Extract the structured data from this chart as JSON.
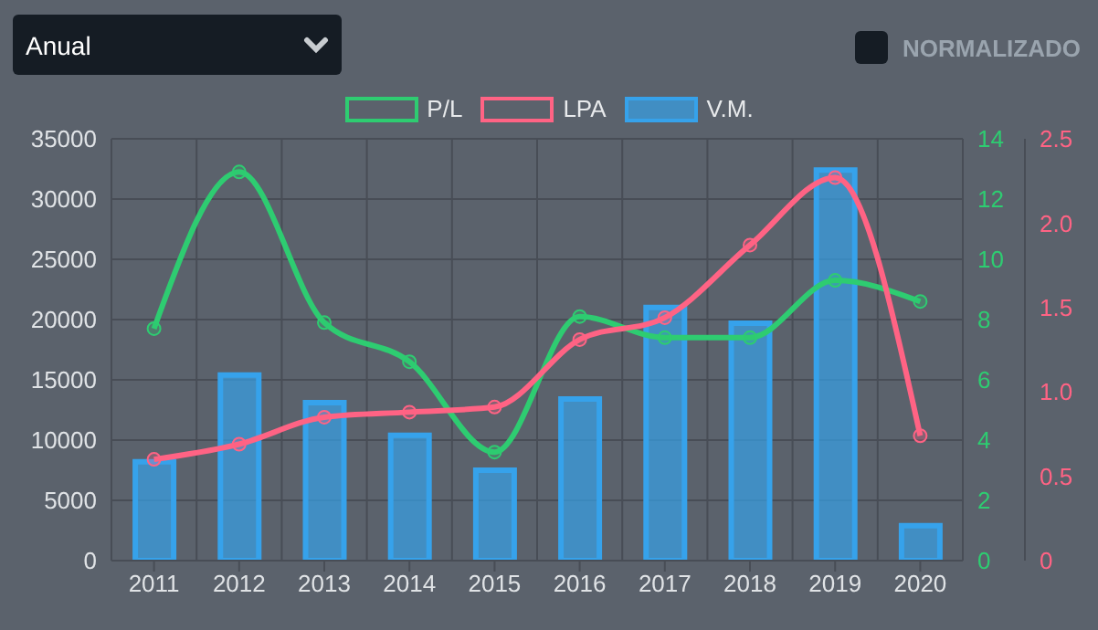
{
  "chart_data": {
    "type": "bar",
    "categories": [
      "2011",
      "2012",
      "2013",
      "2014",
      "2015",
      "2016",
      "2017",
      "2018",
      "2019",
      "2020"
    ],
    "series": [
      {
        "name": "P/L",
        "type": "line",
        "axis": "y2",
        "color": "#2ecc71",
        "values": [
          7.7,
          12.9,
          7.9,
          6.6,
          3.6,
          8.1,
          7.4,
          7.4,
          9.3,
          8.6
        ]
      },
      {
        "name": "LPA",
        "type": "line",
        "axis": "y3",
        "color": "#ff6384",
        "values": [
          0.6,
          0.69,
          0.85,
          0.88,
          0.91,
          1.31,
          1.44,
          1.87,
          2.27,
          0.74
        ]
      },
      {
        "name": "V.M.",
        "color": "#36a2eb",
        "values": [
          8200,
          15400,
          13100,
          10400,
          7500,
          13400,
          21000,
          19700,
          32400,
          2900
        ]
      }
    ],
    "ylim": [
      0,
      35000
    ],
    "yticks": [
      0,
      5000,
      10000,
      15000,
      20000,
      25000,
      30000,
      35000
    ],
    "y2lim": [
      0,
      14
    ],
    "y2ticks": [
      0,
      2,
      4,
      6,
      8,
      10,
      12,
      14
    ],
    "y3lim": [
      0,
      2.5
    ],
    "y3ticks": [
      0,
      0.5,
      {
        "value": 1,
        "label": "1.0"
      },
      1.5,
      {
        "value": 2,
        "label": "2.0"
      },
      2.5
    ],
    "grid": true,
    "legend": "top",
    "marker": "circle",
    "annotations": [
      "Anual",
      "NORMALIZADO"
    ]
  }
}
